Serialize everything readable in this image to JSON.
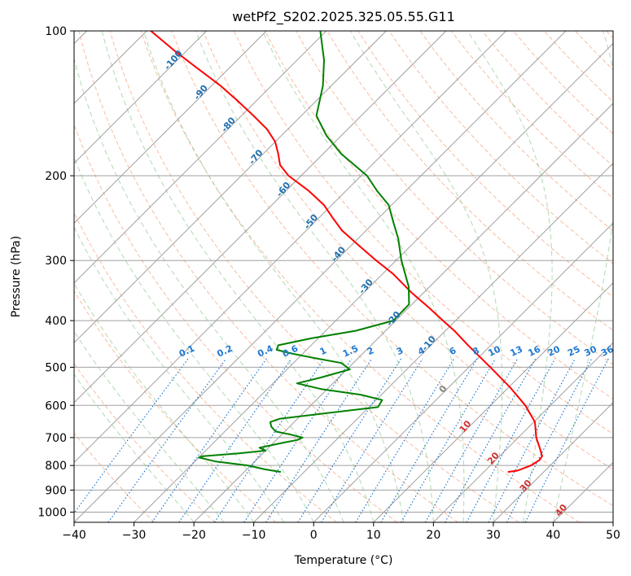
{
  "chart_data": {
    "type": "line",
    "subtype": "skew-t-log-p",
    "title": "wetPf2_S202.2025.325.05.55.G11",
    "xlabel": "Temperature (°C)",
    "ylabel": "Pressure (hPa)",
    "xlim": [
      -40,
      50
    ],
    "ylim": [
      1050,
      100
    ],
    "y_scale": "log",
    "x_ticks": [
      -40,
      -30,
      -20,
      -10,
      0,
      10,
      20,
      30,
      40,
      50
    ],
    "y_ticks": [
      100,
      200,
      300,
      400,
      500,
      600,
      700,
      800,
      900,
      1000
    ],
    "grid": true,
    "series": [
      {
        "color": "#ff0000",
        "pressure": [
          825,
          820,
          800,
          780,
          765,
          740,
          700,
          650,
          600,
          550,
          500,
          450,
          420,
          400,
          375,
          350,
          320,
          300,
          280,
          260,
          245,
          230,
          215,
          200,
          190,
          180,
          170,
          160,
          150,
          140,
          130,
          120,
          110,
          100
        ],
        "temperature": [
          24.0,
          25.4,
          26.8,
          27.3,
          27.1,
          25.6,
          23.0,
          20.2,
          15.8,
          10.2,
          3.6,
          -3.8,
          -8.5,
          -12.1,
          -16.8,
          -22.0,
          -28.2,
          -33.3,
          -38.5,
          -44.0,
          -47.6,
          -51.3,
          -56.2,
          -62.1,
          -65.3,
          -67.5,
          -70.0,
          -73.5,
          -78.0,
          -83.0,
          -88.5,
          -95.0,
          -102.0,
          -109.3
        ]
      },
      {
        "color": "#008000",
        "pressure": [
          825,
          815,
          800,
          785,
          770,
          765,
          755,
          745,
          735,
          718,
          708,
          700,
          690,
          680,
          665,
          650,
          640,
          625,
          605,
          585,
          570,
          555,
          540,
          525,
          505,
          490,
          478,
          468,
          460,
          450,
          435,
          420,
          400,
          370,
          340,
          300,
          270,
          250,
          230,
          215,
          200,
          180,
          165,
          150,
          130,
          115,
          100
        ],
        "temperature": [
          -13.9,
          -17.0,
          -20.5,
          -26.5,
          -30.0,
          -29.5,
          -24.0,
          -20.0,
          -21.5,
          -18.5,
          -16.5,
          -16.0,
          -18.5,
          -21.5,
          -23.0,
          -24.0,
          -23.0,
          -17.0,
          -8.5,
          -9.0,
          -13.5,
          -21.0,
          -26.0,
          -23.0,
          -19.5,
          -22.0,
          -27.5,
          -32.0,
          -35.0,
          -35.5,
          -31.0,
          -25.0,
          -20.4,
          -20.5,
          -23.5,
          -29.1,
          -33.3,
          -36.8,
          -40.5,
          -44.8,
          -49.0,
          -57.0,
          -62.5,
          -67.5,
          -71.4,
          -75.5,
          -81.0
        ]
      }
    ],
    "dry_adiabat_labels": [
      "-100",
      "-90",
      "-80",
      "-70",
      "-60",
      "-50",
      "-40",
      "-30",
      "-20",
      "-10",
      "0",
      "10",
      "20",
      "30",
      "40"
    ],
    "mixing_ratio_labels": [
      "0.1",
      "0.2",
      "0.4",
      "0.6",
      "1",
      "1.5",
      "2",
      "3",
      "4",
      "6",
      "8",
      "10",
      "13",
      "16",
      "20",
      "25",
      "30",
      "36"
    ],
    "colors": {
      "temperature": "#ff0000",
      "dewpoint": "#008000",
      "isotherm": "#a0a0a0",
      "isobar": "#a0a0a0",
      "dry_adiabat": "#f4a582",
      "moist_adiabat": "#8fc98f",
      "mixing_ratio": "#1f78d1",
      "adiabat_label": "#2070b0"
    }
  }
}
